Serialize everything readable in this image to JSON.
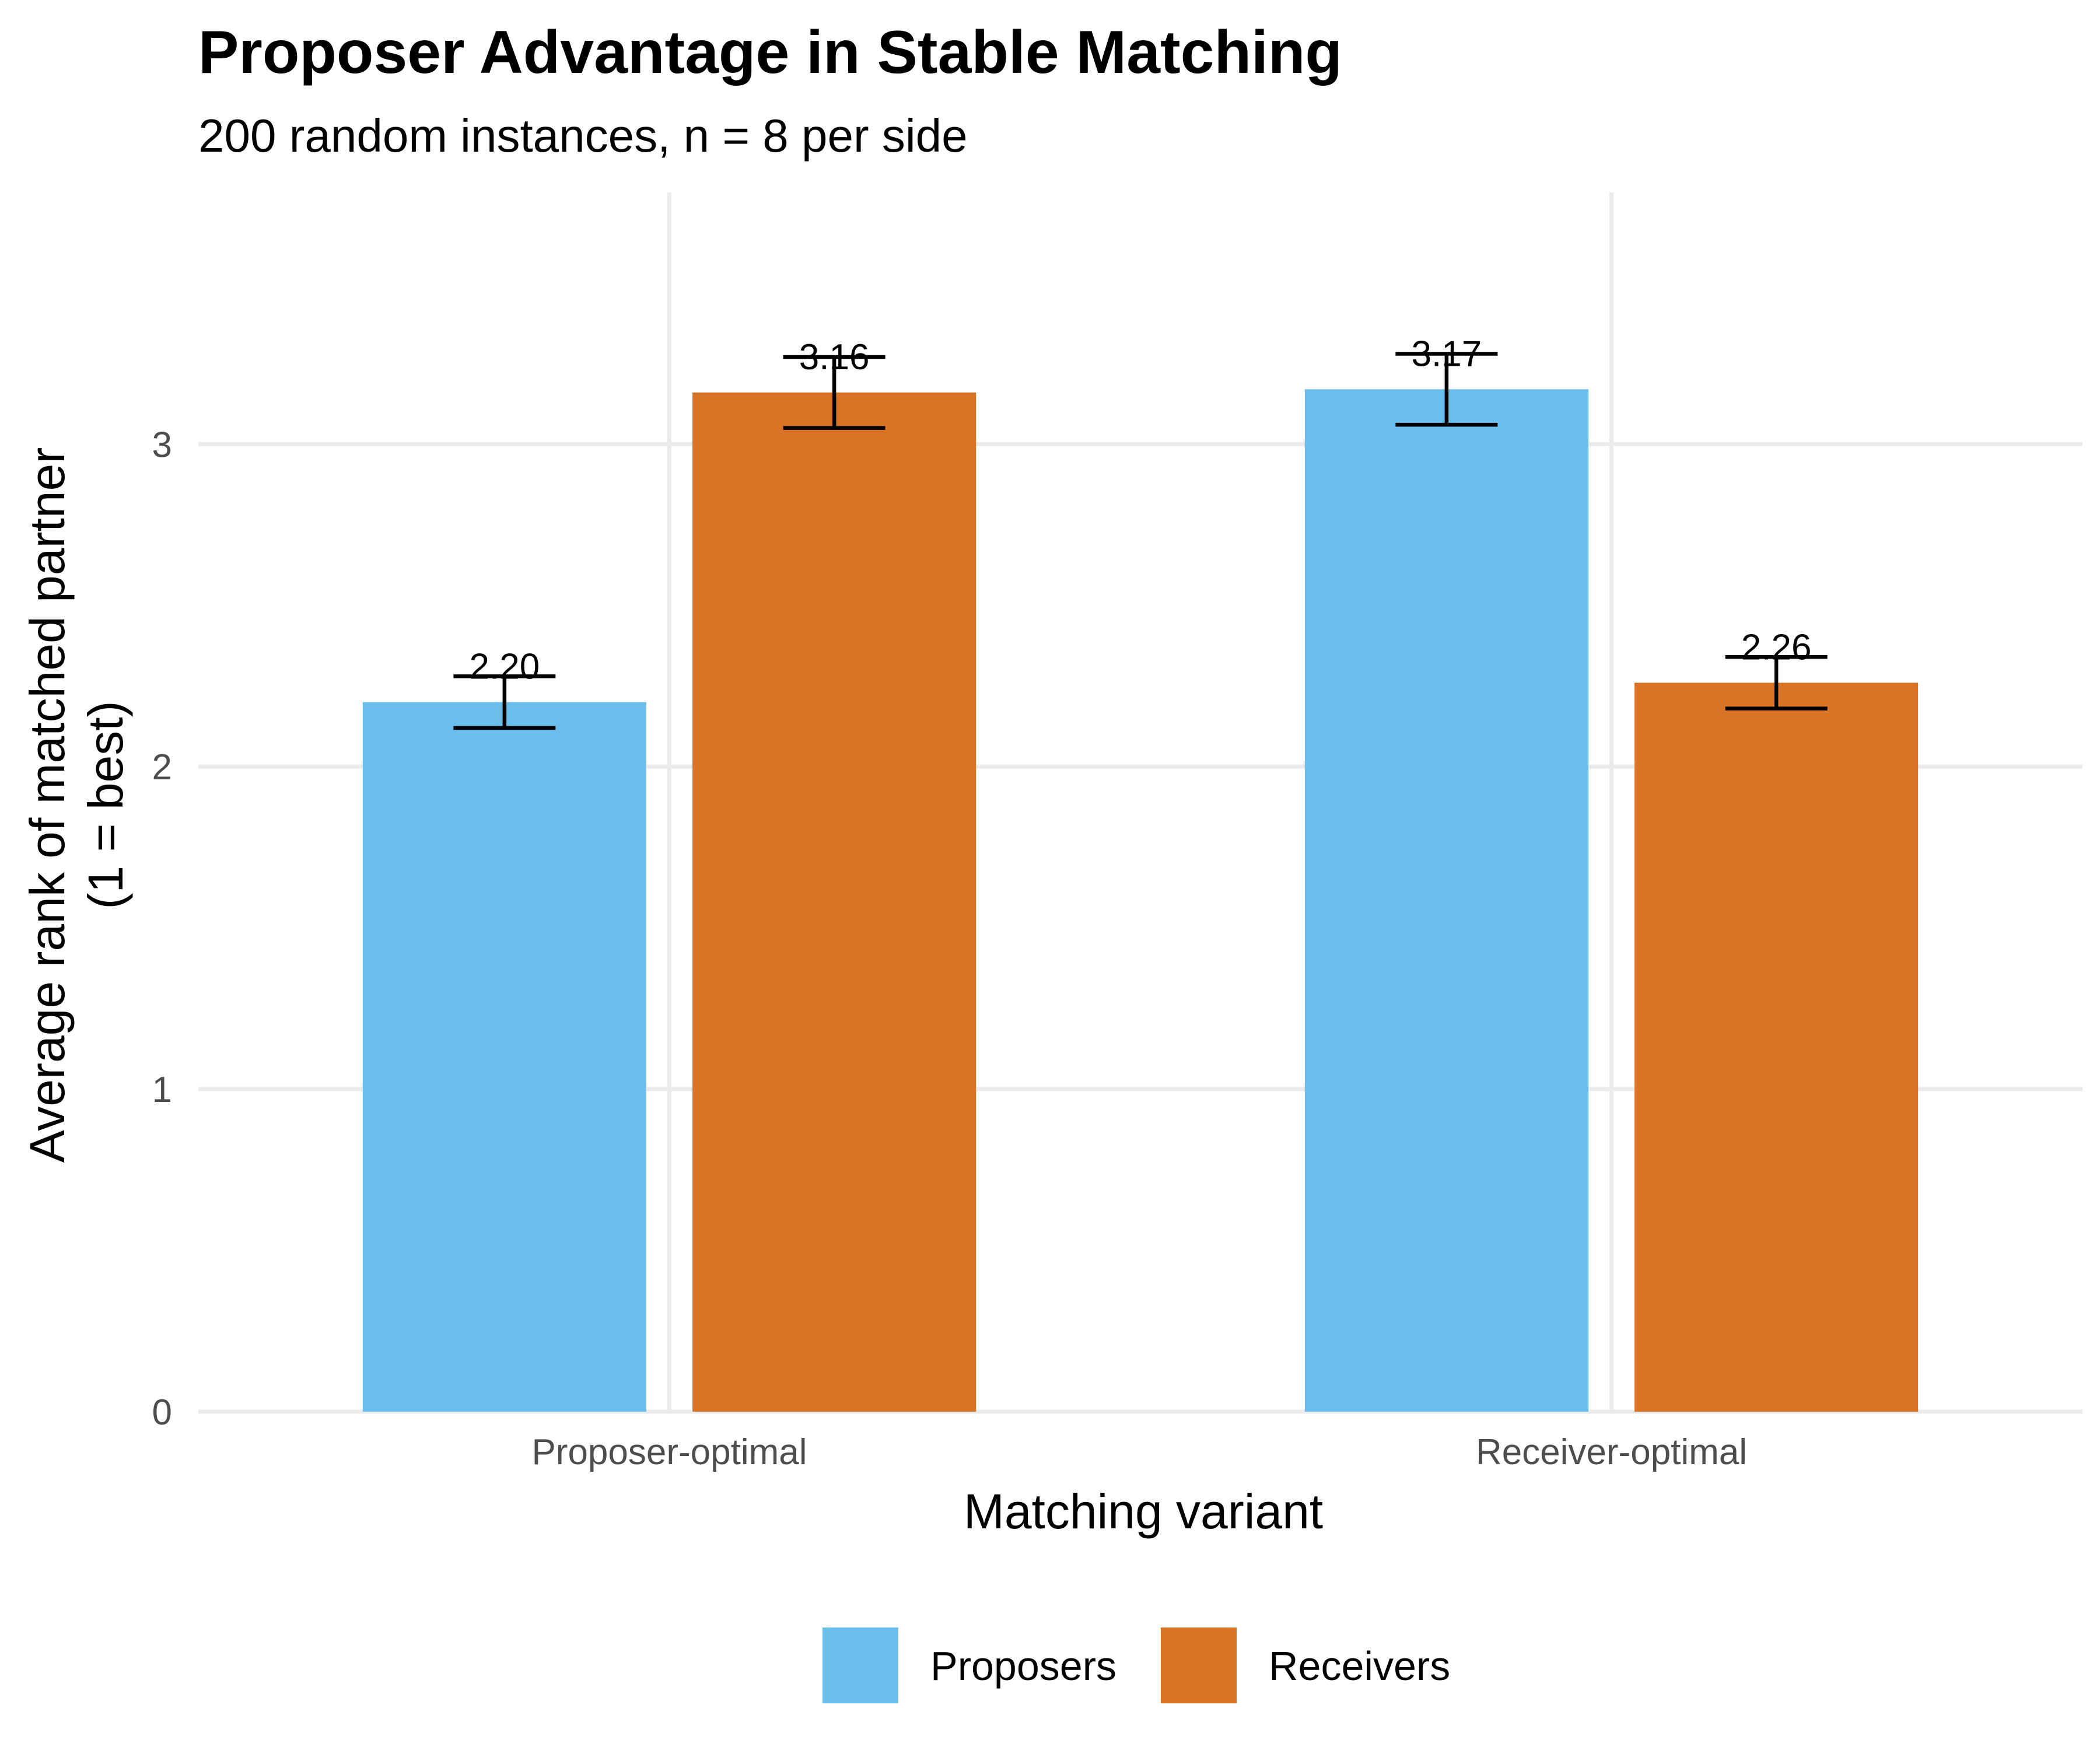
{
  "chart_data": {
    "type": "bar",
    "title": "Proposer Advantage in Stable Matching",
    "subtitle": "200 random instances, n = 8 per side",
    "xlabel": "Matching variant",
    "ylabel_line1": "Average rank of matched partner",
    "ylabel_line2": "(1 = best)",
    "categories": [
      "Proposer-optimal",
      "Receiver-optimal"
    ],
    "series": [
      {
        "name": "Proposers",
        "color": "#6bbdeb",
        "values": [
          2.2,
          3.17
        ],
        "labels": [
          "2.20",
          "3.17"
        ],
        "err_low": [
          2.12,
          3.06
        ],
        "err_high": [
          2.28,
          3.28
        ]
      },
      {
        "name": "Receivers",
        "color": "#d97325",
        "values": [
          3.16,
          2.26
        ],
        "labels": [
          "3.16",
          "2.26"
        ],
        "err_low": [
          3.05,
          2.18
        ],
        "err_high": [
          3.27,
          2.34
        ]
      }
    ],
    "yticks": [
      0,
      1,
      2,
      3
    ],
    "ytick_labels": [
      "0",
      "1",
      "2",
      "3"
    ],
    "ylim": [
      0,
      3.78
    ],
    "grid": true,
    "legend_position": "bottom"
  }
}
